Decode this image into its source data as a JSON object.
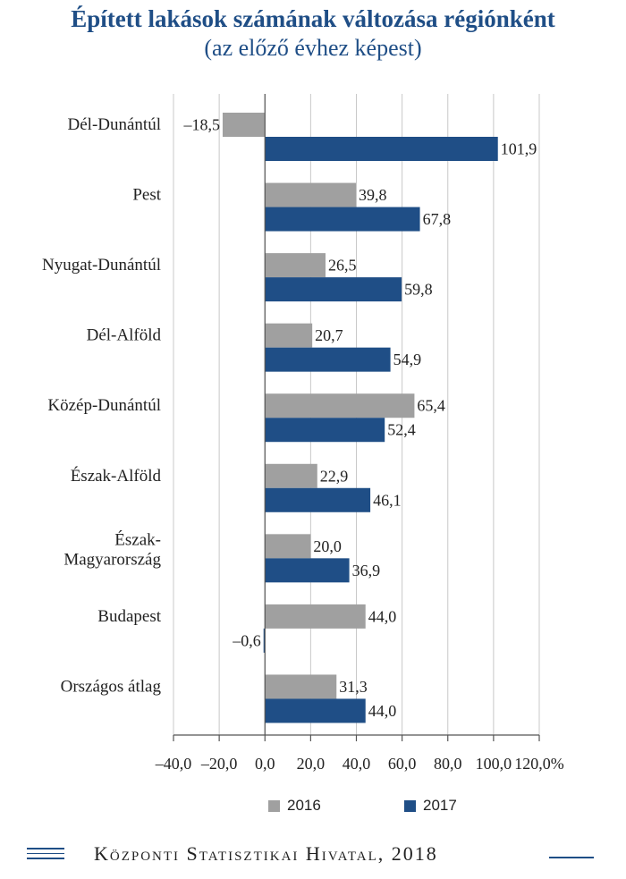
{
  "title": "Épített lakások számának változása régiónként",
  "subtitle": "(az előző évhez képest)",
  "footer": "Központi Statisztikai Hivatal, 2018",
  "colors": {
    "s2016": "#a0a0a0",
    "s2017": "#1f4e86",
    "grid": "#c8c8c8",
    "axis": "#555555"
  },
  "chart_data": {
    "type": "bar",
    "orientation": "horizontal",
    "categories": [
      "Dél-Dunántúl",
      "Pest",
      "Nyugat-Dunántúl",
      "Dél-Alföld",
      "Közép-Dunántúl",
      "Észak-Alföld",
      "Észak-Magyarország",
      "Budapest",
      "Országos átlag"
    ],
    "category_lines": [
      [
        "Dél-Dunántúl"
      ],
      [
        "Pest"
      ],
      [
        "Nyugat-Dunántúl"
      ],
      [
        "Dél-Alföld"
      ],
      [
        "Közép-Dunántúl"
      ],
      [
        "Észak-Alföld"
      ],
      [
        "Észak-",
        "Magyarország"
      ],
      [
        "Budapest"
      ],
      [
        "Országos átlag"
      ]
    ],
    "series": [
      {
        "name": "2016",
        "values": [
          -18.5,
          39.8,
          26.5,
          20.7,
          65.4,
          22.9,
          20.0,
          44.0,
          31.3
        ],
        "labels": [
          "–18,5",
          "39,8",
          "26,5",
          "20,7",
          "65,4",
          "22,9",
          "20,0",
          "44,0",
          "31,3"
        ]
      },
      {
        "name": "2017",
        "values": [
          101.9,
          67.8,
          59.8,
          54.9,
          52.4,
          46.1,
          36.9,
          -0.6,
          44.0
        ],
        "labels": [
          "101,9",
          "67,8",
          "59,8",
          "54,9",
          "52,4",
          "46,1",
          "36,9",
          "–0,6",
          "44,0"
        ]
      }
    ],
    "xlim": [
      -40,
      120
    ],
    "xticks": [
      -40,
      -20,
      0,
      20,
      40,
      60,
      80,
      100,
      120
    ],
    "xtick_labels": [
      "–40,0",
      "–20,0",
      "0,0",
      "20,0",
      "40,0",
      "60,0",
      "80,0",
      "100,0",
      "120,0%"
    ],
    "grid": true,
    "legend_position": "bottom"
  }
}
